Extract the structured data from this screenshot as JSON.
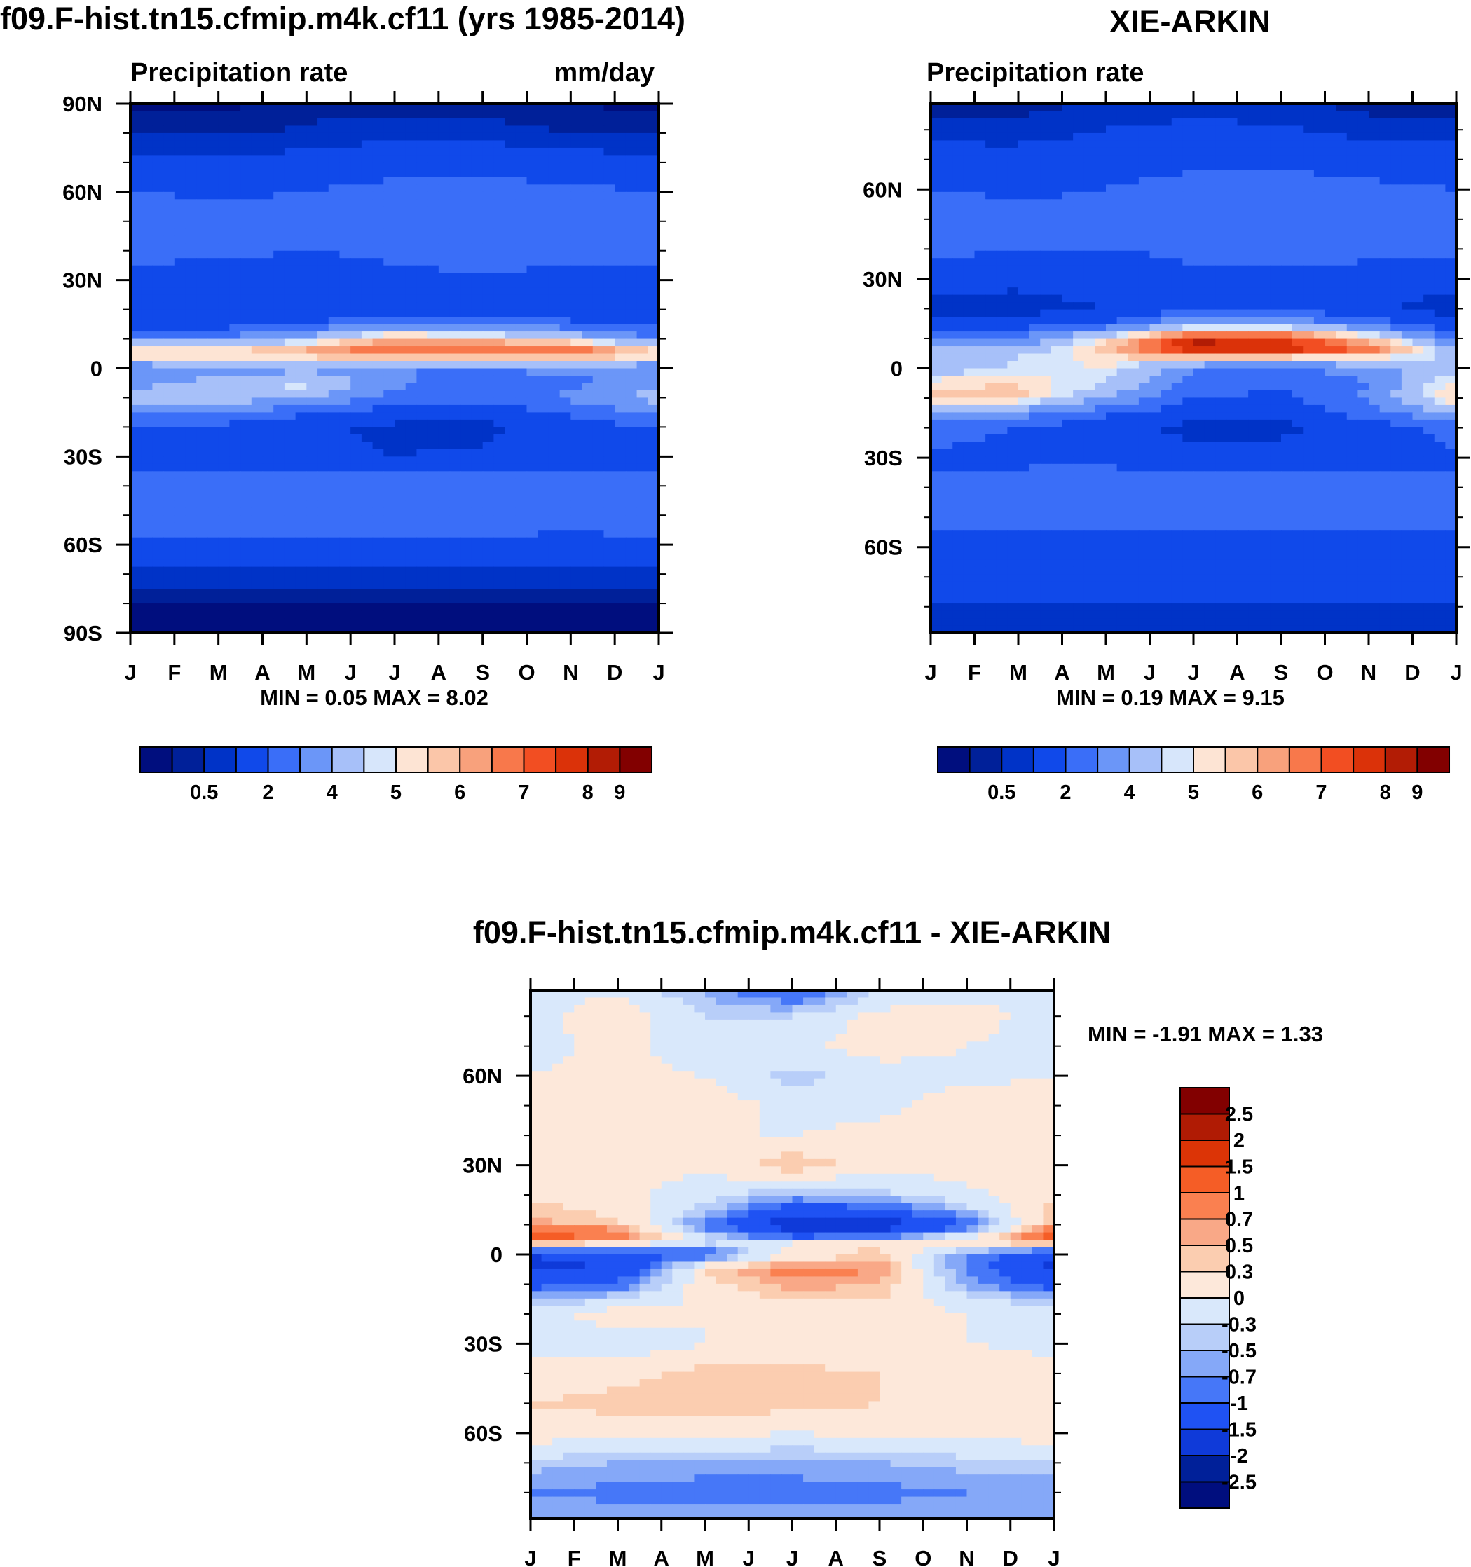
{
  "colors": {
    "seq_palette": [
      "#000e7e",
      "#002099",
      "#0033c7",
      "#1049ea",
      "#3a6ef8",
      "#6b96f8",
      "#a7c0f9",
      "#d7e6fb",
      "#fde4d4",
      "#fbc6a9",
      "#f8a17c",
      "#f8784b",
      "#f24e22",
      "#db3209",
      "#b21c05",
      "#820000"
    ],
    "diff_palette": [
      "#000e7e",
      "#002099",
      "#0f3ad9",
      "#1f52f3",
      "#4677f8",
      "#85a8f8",
      "#b8cef9",
      "#d9e8fb",
      "#fde8da",
      "#fbcdb0",
      "#f9a887",
      "#fa8050",
      "#f55d26",
      "#dc3406",
      "#b01b04",
      "#820000"
    ]
  },
  "chart_data": [
    {
      "id": "model",
      "type": "heatmap",
      "title": "f09.F-hist.tn15.cfmip.m4k.cf11 (yrs 1985-2014)",
      "subtitle_left": "Precipitation rate",
      "subtitle_right": "mm/day",
      "x_tick_labels": [
        "J",
        "F",
        "M",
        "A",
        "M",
        "J",
        "J",
        "A",
        "S",
        "O",
        "N",
        "D",
        "J"
      ],
      "y_tick_labels": [
        "90N",
        "60N",
        "30N",
        "0",
        "30S",
        "60S",
        "90S"
      ],
      "y_tick_values": [
        90,
        60,
        30,
        0,
        -30,
        -60,
        -90
      ],
      "ylim": [
        -90,
        90
      ],
      "min_max_text": "MIN =   0.05 MAX =   8.02",
      "colorbar_labels": [
        "0.5",
        "2",
        "4",
        "5",
        "6",
        "7",
        "8",
        "9"
      ],
      "colorbar_levels": [
        0.2,
        0.5,
        1,
        2,
        3,
        4,
        5,
        5.5,
        6,
        6.5,
        7,
        7.5,
        8,
        8.5,
        9
      ],
      "colorbar_orientation": "horizontal",
      "field": {
        "lats": [
          90,
          80,
          70,
          60,
          50,
          40,
          30,
          20,
          15,
          10,
          7,
          5,
          3,
          0,
          -5,
          -10,
          -15,
          -20,
          -30,
          -40,
          -50,
          -60,
          -70,
          -80,
          -90
        ],
        "months": [
          "Jan",
          "Mar",
          "May",
          "Jul",
          "Sep",
          "Nov",
          "Jan"
        ],
        "rows": [
          [
            0.1,
            0.1,
            0.3,
            0.3,
            0.3,
            0.2,
            0.1
          ],
          [
            0.4,
            0.4,
            0.6,
            0.8,
            0.7,
            0.5,
            0.4
          ],
          [
            1.2,
            1.2,
            1.3,
            1.6,
            1.6,
            1.4,
            1.2
          ],
          [
            2.0,
            1.9,
            2.0,
            2.3,
            2.4,
            2.2,
            2.0
          ],
          [
            2.5,
            2.3,
            2.2,
            2.4,
            2.6,
            2.6,
            2.5
          ],
          [
            2.4,
            2.2,
            2.0,
            2.2,
            2.5,
            2.5,
            2.4
          ],
          [
            1.6,
            1.4,
            1.4,
            1.8,
            1.8,
            1.6,
            1.6
          ],
          [
            1.2,
            1.1,
            1.2,
            1.5,
            1.6,
            1.3,
            1.2
          ],
          [
            1.6,
            1.6,
            2.0,
            3.0,
            3.0,
            2.2,
            1.6
          ],
          [
            3.0,
            3.0,
            4.5,
            6.5,
            6.0,
            5.0,
            3.0
          ],
          [
            5.5,
            5.5,
            6.5,
            7.6,
            7.6,
            7.4,
            5.5
          ],
          [
            6.2,
            6.0,
            6.5,
            7.3,
            7.3,
            7.4,
            6.2
          ],
          [
            5.2,
            5.5,
            5.6,
            6.0,
            6.0,
            5.8,
            5.2
          ],
          [
            3.0,
            3.5,
            3.6,
            3.0,
            3.0,
            3.2,
            3.0
          ],
          [
            3.5,
            4.5,
            5.5,
            3.2,
            2.5,
            2.8,
            3.5
          ],
          [
            4.5,
            4.8,
            4.0,
            2.8,
            2.2,
            3.2,
            4.5
          ],
          [
            3.2,
            3.0,
            2.2,
            1.5,
            1.4,
            2.2,
            3.2
          ],
          [
            2.0,
            1.8,
            1.2,
            0.8,
            0.8,
            1.5,
            2.0
          ],
          [
            1.5,
            1.4,
            1.2,
            1.0,
            1.1,
            1.4,
            1.5
          ],
          [
            2.5,
            2.8,
            3.0,
            2.8,
            2.6,
            2.4,
            2.5
          ],
          [
            2.4,
            2.5,
            2.6,
            2.6,
            2.4,
            2.3,
            2.4
          ],
          [
            1.8,
            1.8,
            1.8,
            1.8,
            1.8,
            1.8,
            1.8
          ],
          [
            0.8,
            0.8,
            0.8,
            0.7,
            0.8,
            0.8,
            0.8
          ],
          [
            0.2,
            0.2,
            0.2,
            0.2,
            0.2,
            0.2,
            0.2
          ],
          [
            0.1,
            0.1,
            0.1,
            0.1,
            0.1,
            0.1,
            0.1
          ]
        ]
      }
    },
    {
      "id": "obs",
      "type": "heatmap",
      "title": "XIE-ARKIN",
      "subtitle_left": "Precipitation rate",
      "x_tick_labels": [
        "J",
        "F",
        "M",
        "A",
        "M",
        "J",
        "J",
        "A",
        "S",
        "O",
        "N",
        "D",
        "J"
      ],
      "y_tick_labels": [
        "60N",
        "30N",
        "0",
        "30S",
        "60S"
      ],
      "y_tick_values": [
        60,
        30,
        0,
        -30,
        -60
      ],
      "ylim": [
        -88.75,
        88.75
      ],
      "min_max_text": "MIN =   0.19 MAX =   9.15",
      "colorbar_labels": [
        "0.5",
        "2",
        "4",
        "5",
        "6",
        "7",
        "8",
        "9"
      ],
      "colorbar_levels": [
        0.2,
        0.5,
        1,
        2,
        3,
        4,
        5,
        5.5,
        6,
        6.5,
        7,
        7.5,
        8,
        8.5,
        9
      ],
      "colorbar_orientation": "horizontal",
      "field": {
        "lats": [
          90,
          80,
          70,
          60,
          50,
          40,
          30,
          20,
          15,
          10,
          7,
          5,
          3,
          0,
          -5,
          -10,
          -15,
          -20,
          -30,
          -40,
          -50,
          -60,
          -70,
          -80,
          -90
        ],
        "months": [
          "Jan",
          "Mar",
          "May",
          "Jul",
          "Sep",
          "Nov",
          "Jan"
        ],
        "rows": [
          [
            0.3,
            0.3,
            0.5,
            0.6,
            0.5,
            0.3,
            0.3
          ],
          [
            0.6,
            0.6,
            1.0,
            1.2,
            1.1,
            0.7,
            0.6
          ],
          [
            1.5,
            1.4,
            1.6,
            1.8,
            1.8,
            1.6,
            1.5
          ],
          [
            2.0,
            1.9,
            2.0,
            2.3,
            2.4,
            2.2,
            2.0
          ],
          [
            2.4,
            2.2,
            2.2,
            2.5,
            2.7,
            2.6,
            2.4
          ],
          [
            2.3,
            2.0,
            2.0,
            2.2,
            2.4,
            2.4,
            2.3
          ],
          [
            1.4,
            1.2,
            1.3,
            1.8,
            1.8,
            1.4,
            1.4
          ],
          [
            0.6,
            0.7,
            1.0,
            1.8,
            1.8,
            1.2,
            0.6
          ],
          [
            1.2,
            1.4,
            2.0,
            4.0,
            4.0,
            2.5,
            1.2
          ],
          [
            2.6,
            3.0,
            5.5,
            8.4,
            8.0,
            6.0,
            2.6
          ],
          [
            4.0,
            4.0,
            6.5,
            8.8,
            8.6,
            7.5,
            4.0
          ],
          [
            5.0,
            4.6,
            6.0,
            7.8,
            7.6,
            7.0,
            5.0
          ],
          [
            4.6,
            5.2,
            5.8,
            5.5,
            5.2,
            5.0,
            4.6
          ],
          [
            4.5,
            5.0,
            5.6,
            3.0,
            2.8,
            3.5,
            4.5
          ],
          [
            5.8,
            6.0,
            5.0,
            2.5,
            2.2,
            3.0,
            5.8
          ],
          [
            6.3,
            6.2,
            4.0,
            2.0,
            1.8,
            3.2,
            6.3
          ],
          [
            4.0,
            3.5,
            2.2,
            1.4,
            1.3,
            2.4,
            4.0
          ],
          [
            2.4,
            2.0,
            1.3,
            0.7,
            0.7,
            1.5,
            2.4
          ],
          [
            1.8,
            1.7,
            1.6,
            1.4,
            1.5,
            1.7,
            1.8
          ],
          [
            2.4,
            2.6,
            2.9,
            2.8,
            2.6,
            2.4,
            2.4
          ],
          [
            2.2,
            2.2,
            2.2,
            2.2,
            2.1,
            2.1,
            2.2
          ],
          [
            1.8,
            1.8,
            1.8,
            1.8,
            1.8,
            1.8,
            1.8
          ],
          [
            1.4,
            1.4,
            1.5,
            1.5,
            1.5,
            1.4,
            1.4
          ],
          [
            1.0,
            1.0,
            1.0,
            1.0,
            1.0,
            1.0,
            1.0
          ],
          [
            0.6,
            0.6,
            0.6,
            0.6,
            0.6,
            0.6,
            0.6
          ]
        ]
      }
    },
    {
      "id": "diff",
      "type": "heatmap",
      "title": "f09.F-hist.tn15.cfmip.m4k.cf11 - XIE-ARKIN",
      "x_tick_labels": [
        "J",
        "F",
        "M",
        "A",
        "M",
        "J",
        "J",
        "A",
        "S",
        "O",
        "N",
        "D",
        "J"
      ],
      "y_tick_labels": [
        "60N",
        "30N",
        "0",
        "30S",
        "60S"
      ],
      "y_tick_values": [
        60,
        30,
        0,
        -30,
        -60
      ],
      "ylim": [
        -88.75,
        88.75
      ],
      "min_max_text": "MIN =  -1.91 MAX =   1.33",
      "colorbar_labels": [
        "2.5",
        "2",
        "1.5",
        "1",
        "0.7",
        "0.5",
        "0.3",
        "0",
        "-0.3",
        "-0.5",
        "-0.7",
        "-1",
        "-1.5",
        "-2",
        "-2.5"
      ],
      "colorbar_levels": [
        -2.5,
        -2,
        -1.5,
        -1,
        -0.7,
        -0.5,
        -0.3,
        0,
        0.3,
        0.5,
        0.7,
        1,
        1.5,
        2,
        2.5
      ],
      "colorbar_orientation": "vertical",
      "field": {
        "lats": [
          90,
          80,
          70,
          60,
          50,
          40,
          30,
          20,
          15,
          10,
          7,
          5,
          3,
          0,
          -5,
          -10,
          -15,
          -20,
          -30,
          -40,
          -50,
          -60,
          -70,
          -80,
          -90
        ],
        "months": [
          "Jan",
          "Mar",
          "May",
          "Jul",
          "Sep",
          "Nov",
          "Jan"
        ],
        "rows": [
          [
            -0.1,
            -0.1,
            -0.6,
            -1.2,
            -0.3,
            -0.1,
            -0.1
          ],
          [
            -0.1,
            0.2,
            -0.3,
            -0.3,
            0.1,
            0.1,
            -0.1
          ],
          [
            -0.1,
            0.1,
            -0.2,
            -0.1,
            0.2,
            0.0,
            -0.1
          ],
          [
            0.0,
            0.1,
            0.0,
            -0.4,
            -0.2,
            -0.1,
            0.0
          ],
          [
            0.2,
            0.1,
            0.2,
            -0.1,
            -0.1,
            0.2,
            0.2
          ],
          [
            0.1,
            0.2,
            0.0,
            0.0,
            0.1,
            0.2,
            0.1
          ],
          [
            0.1,
            0.1,
            0.1,
            0.5,
            0.1,
            0.2,
            0.1
          ],
          [
            0.2,
            0.1,
            -0.2,
            -0.5,
            -0.4,
            -0.1,
            0.2
          ],
          [
            0.4,
            0.2,
            -0.4,
            -1.2,
            -1.1,
            -0.4,
            0.4
          ],
          [
            0.6,
            0.4,
            -0.8,
            -1.9,
            -1.9,
            -1.0,
            0.6
          ],
          [
            1.3,
            1.0,
            -0.5,
            -1.4,
            -1.3,
            -0.4,
            1.3
          ],
          [
            1.0,
            0.6,
            0.0,
            -0.5,
            -0.4,
            0.2,
            1.0
          ],
          [
            0.2,
            0.0,
            -0.5,
            0.3,
            0.4,
            0.0,
            0.2
          ],
          [
            -1.5,
            -1.3,
            -1.0,
            0.0,
            0.3,
            -0.7,
            -1.5
          ],
          [
            -1.6,
            -1.5,
            0.3,
            0.9,
            0.7,
            -0.8,
            -1.6
          ],
          [
            -1.2,
            -0.9,
            0.2,
            0.6,
            0.5,
            -0.6,
            -1.2
          ],
          [
            -0.5,
            -0.3,
            0.1,
            0.3,
            0.3,
            -0.2,
            -0.5
          ],
          [
            -0.2,
            0.2,
            0.0,
            0.2,
            0.2,
            0.0,
            -0.2
          ],
          [
            -0.1,
            -0.2,
            0.0,
            0.0,
            0.0,
            0.0,
            -0.1
          ],
          [
            0.1,
            0.2,
            0.4,
            0.4,
            0.3,
            0.3,
            0.1
          ],
          [
            0.3,
            0.4,
            0.5,
            0.4,
            0.3,
            0.2,
            0.3
          ],
          [
            0.2,
            0.1,
            0.1,
            0.0,
            0.1,
            0.1,
            0.2
          ],
          [
            -0.4,
            -0.5,
            -0.5,
            -0.6,
            -0.5,
            -0.4,
            -0.4
          ],
          [
            -0.7,
            -0.8,
            -0.9,
            -0.8,
            -0.8,
            -0.7,
            -0.7
          ],
          [
            -0.5,
            -0.5,
            -0.5,
            -0.5,
            -0.5,
            -0.5,
            -0.5
          ]
        ]
      }
    }
  ]
}
